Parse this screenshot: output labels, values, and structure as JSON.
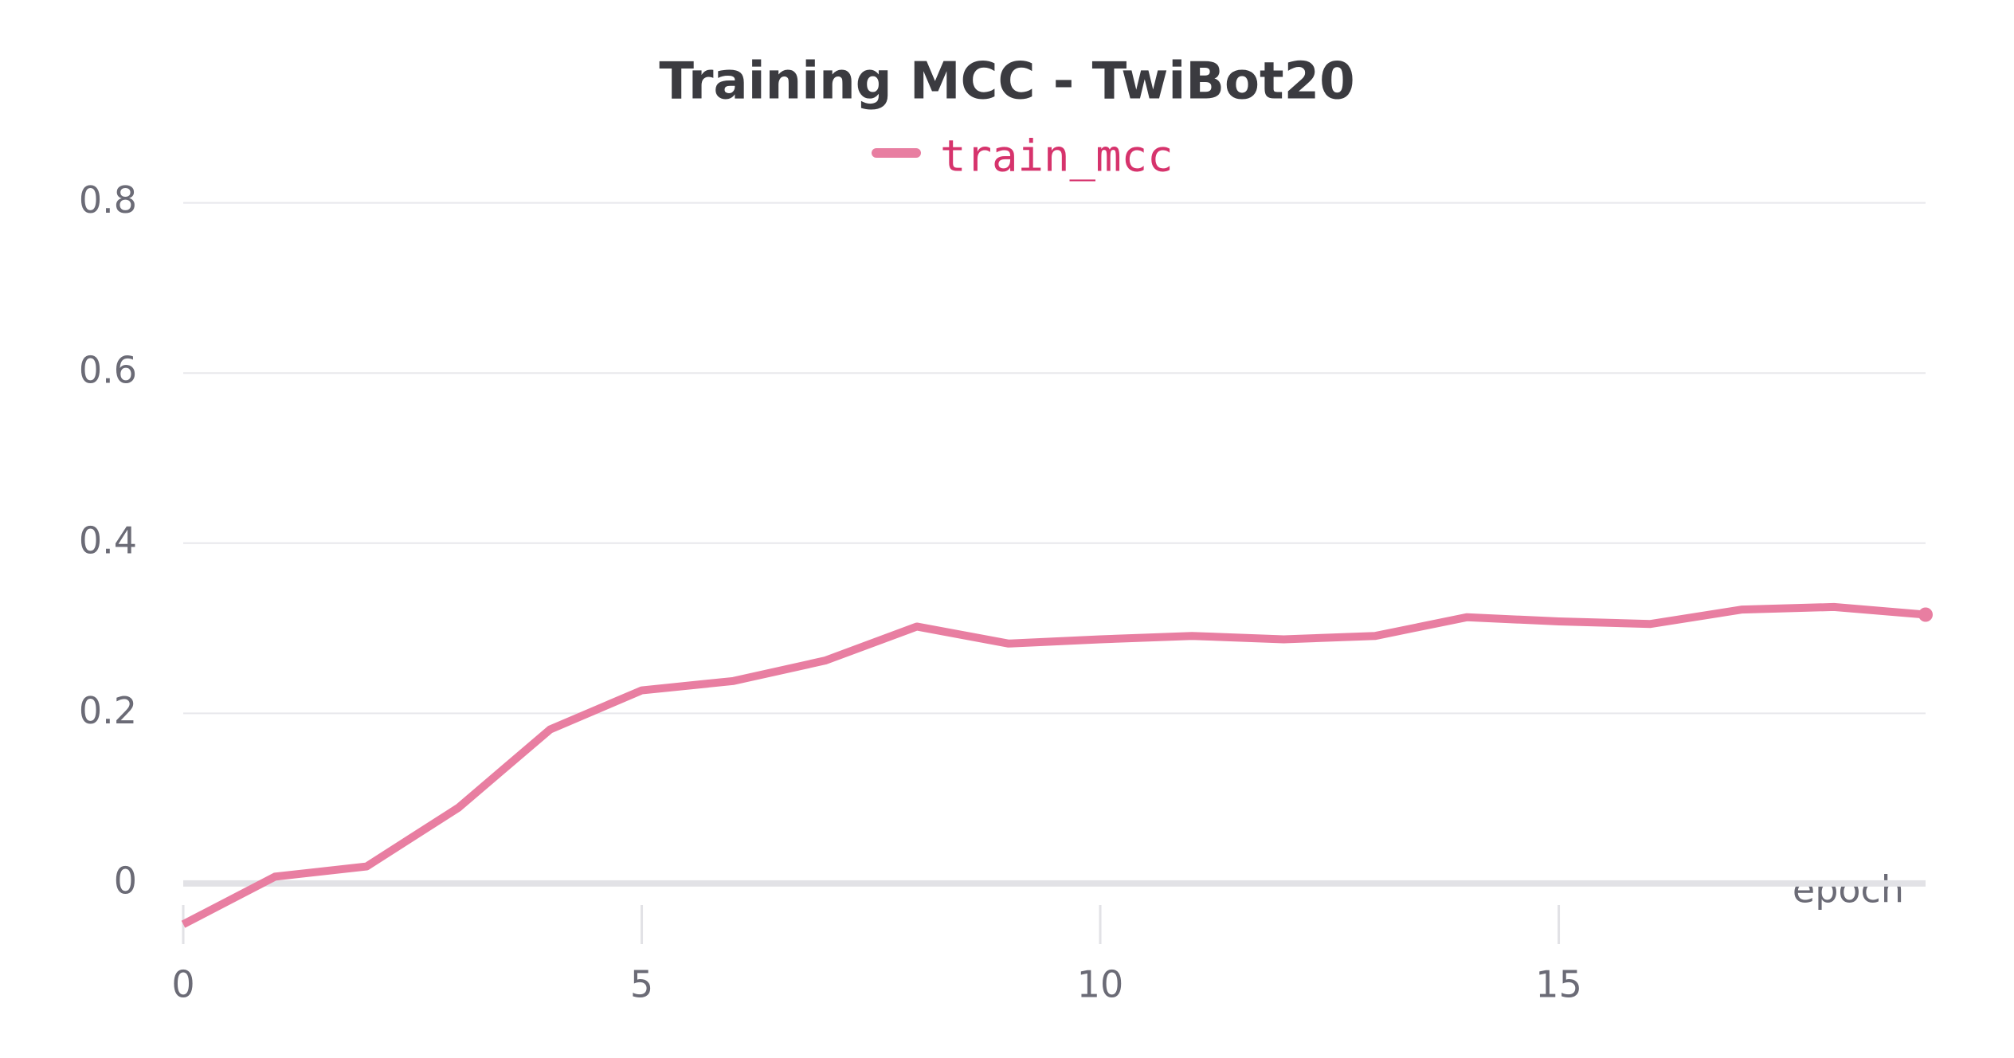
{
  "chart_data": {
    "type": "line",
    "title": "Training MCC - TwiBot20",
    "xlabel": "epoch",
    "x": [
      0,
      1,
      2,
      3,
      4,
      5,
      6,
      7,
      8,
      9,
      10,
      11,
      12,
      13,
      14,
      15,
      16,
      17,
      18,
      19
    ],
    "series": [
      {
        "name": "train_mcc",
        "color": "#e87ea1",
        "values": [
          -0.048,
          0.008,
          0.02,
          0.089,
          0.181,
          0.227,
          0.238,
          0.262,
          0.302,
          0.282,
          0.287,
          0.291,
          0.287,
          0.291,
          0.313,
          0.308,
          0.305,
          0.322,
          0.325,
          0.316
        ]
      }
    ],
    "xlim": [
      0,
      19
    ],
    "xticks": [
      0,
      5,
      10,
      15
    ],
    "ylim": [
      -0.06,
      0.81
    ],
    "yticks": [
      0,
      0.2,
      0.4,
      0.6,
      0.8
    ],
    "grid": true
  }
}
